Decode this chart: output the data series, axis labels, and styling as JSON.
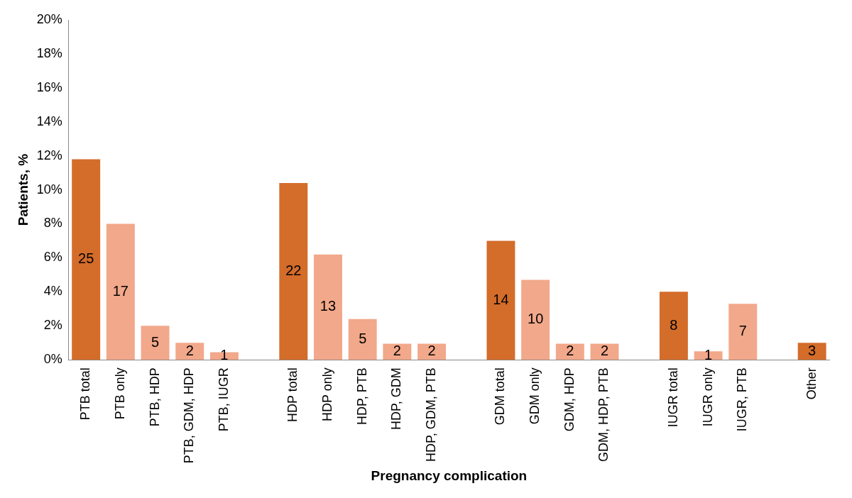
{
  "chart_data": {
    "type": "bar",
    "xlabel": "Pregnancy complication",
    "ylabel": "Patients, %",
    "categories": [
      "PTB total",
      "PTB only",
      "PTB, HDP",
      "PTB, GDM, HDP",
      "PTB, IUGR",
      null,
      "HDP total",
      "HDP only",
      "HDP, PTB",
      "HDP, GDM",
      "HDP, GDM, PTB",
      null,
      "GDM total",
      "GDM only",
      "GDM, HDP",
      "GDM, HDP, PTB",
      null,
      "IUGR total",
      "IUGR only",
      "IUGR, PTB",
      null,
      "Other"
    ],
    "values": [
      11.8,
      8.0,
      2.0,
      1.0,
      0.45,
      null,
      10.4,
      6.2,
      2.4,
      0.95,
      0.95,
      null,
      7.0,
      4.7,
      0.95,
      0.95,
      null,
      4.0,
      0.5,
      3.3,
      null,
      1.0
    ],
    "colors": [
      "#d46c2a",
      "#f2a88a",
      "#f2a88a",
      "#f2a88a",
      "#f2a88a",
      null,
      "#d46c2a",
      "#f2a88a",
      "#f2a88a",
      "#f2a88a",
      "#f2a88a",
      null,
      "#d46c2a",
      "#f2a88a",
      "#f2a88a",
      "#f2a88a",
      null,
      "#d46c2a",
      "#f2a88a",
      "#f2a88a",
      null,
      "#d46c2a"
    ],
    "annotations": [
      "25",
      "17",
      "5",
      "2",
      "1",
      "22",
      "13",
      "5",
      "2",
      "2",
      "14",
      "10",
      "2",
      "2",
      "8",
      "1",
      "7",
      "3"
    ],
    "ylim": [
      0,
      20
    ],
    "yticks": [
      {
        "value": 0,
        "label": "0%"
      },
      {
        "value": 2,
        "label": "2%"
      },
      {
        "value": 4,
        "label": "4%"
      },
      {
        "value": 6,
        "label": "6%"
      },
      {
        "value": 8,
        "label": "8%"
      },
      {
        "value": 10,
        "label": "10%"
      },
      {
        "value": 12,
        "label": "12%"
      },
      {
        "value": 14,
        "label": "14%"
      },
      {
        "value": 16,
        "label": "16%"
      },
      {
        "value": 18,
        "label": "18%"
      },
      {
        "value": 20,
        "label": "20%"
      }
    ],
    "grid": false,
    "legend": false
  }
}
